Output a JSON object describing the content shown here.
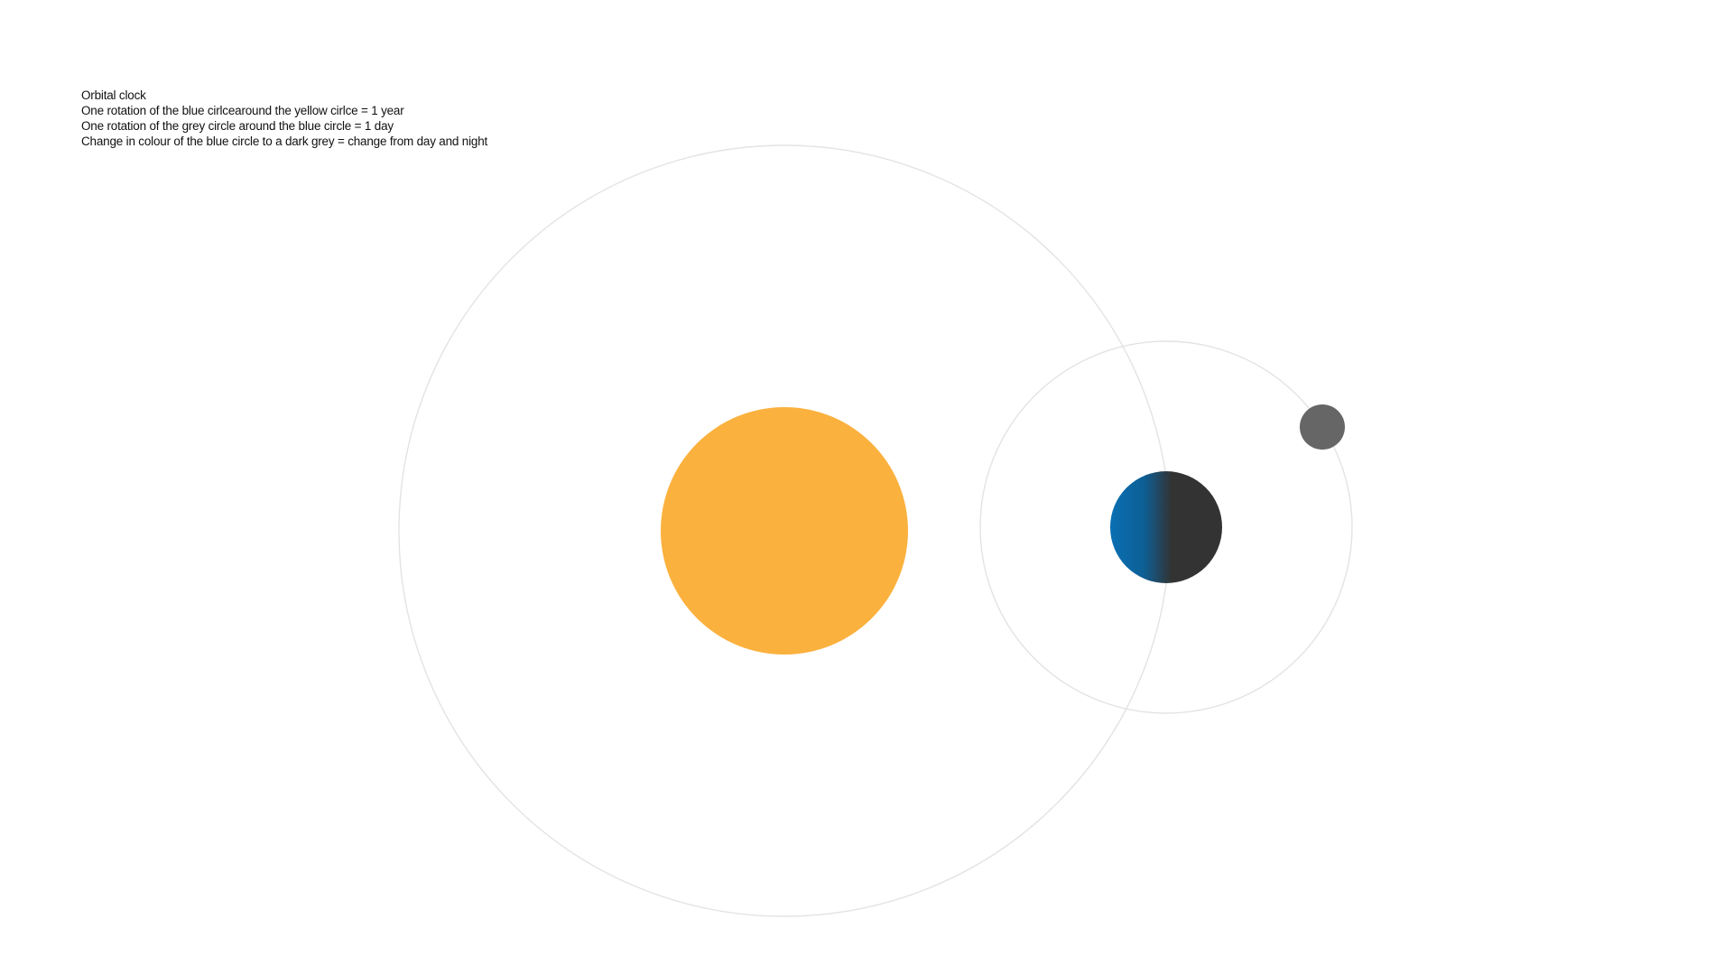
{
  "legend": {
    "title": "Orbital clock",
    "lines": [
      "One rotation of the blue cirlcearound the yellow cirlce = 1 year",
      "One rotation of the grey circle around the blue circle = 1 day",
      "Change in colour of the blue circle to a dark grey = change from day and night"
    ]
  },
  "colors": {
    "background": "#ffffff",
    "orbit_stroke": "#e3e3e3",
    "sun": "#FBB13E",
    "earth_day": "#0a6fb3",
    "earth_night": "#333333",
    "moon": "#666666"
  },
  "bodies": {
    "sun": "yellow circle",
    "earth": "blue circle",
    "moon": "grey circle"
  }
}
